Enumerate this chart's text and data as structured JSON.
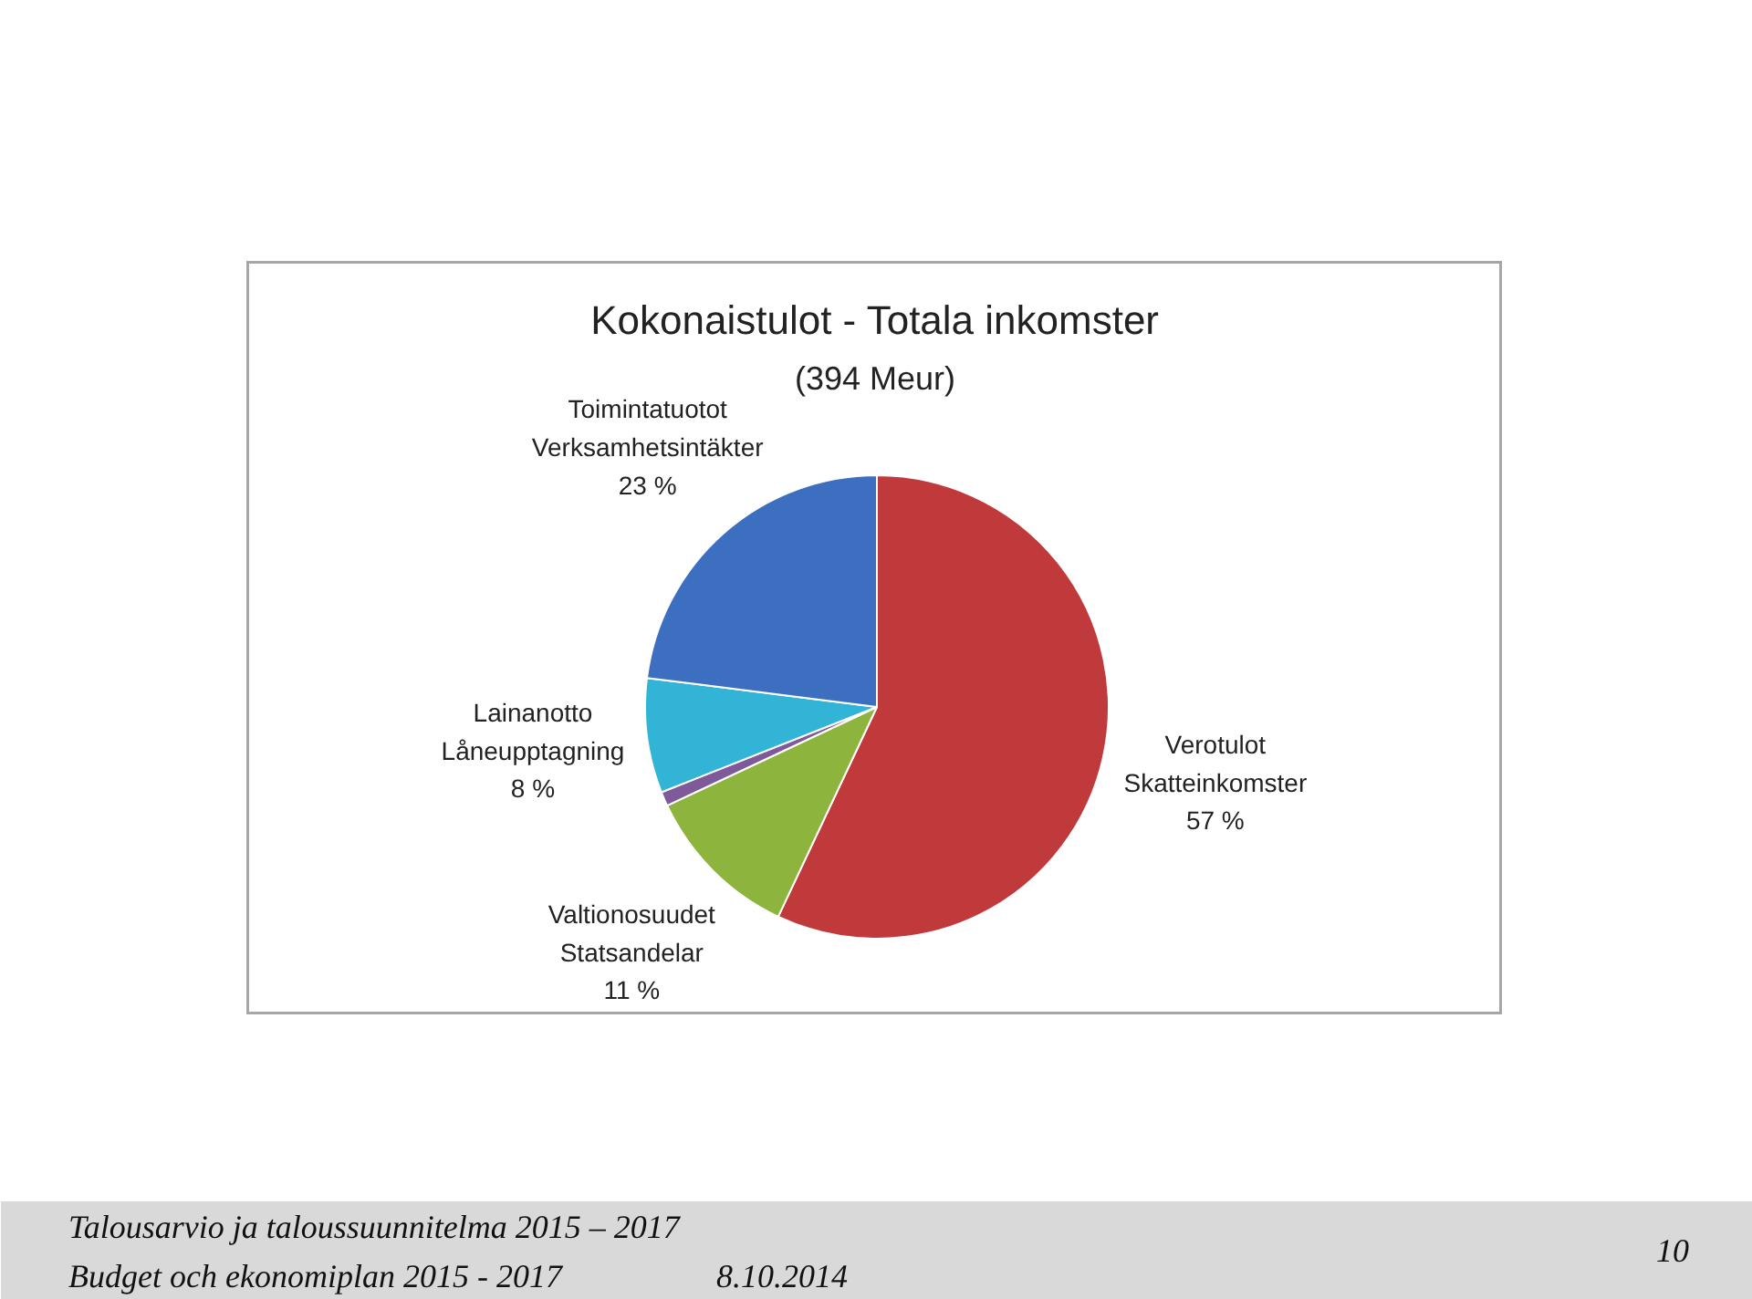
{
  "chart_data": {
    "type": "pie",
    "title": "Kokonaistulot - Totala inkomster",
    "subtitle": "(394 Meur)",
    "categories": [
      "Verotulot\nSkatteinkomster",
      "Valtionosuudet\nStatsandelar",
      null,
      "Lainanotto\nLåneupptagning",
      "Toimintatuotot\nVerksamhetsintäkter"
    ],
    "values": [
      57,
      11,
      1,
      8,
      23
    ],
    "colors": [
      "#c0393b",
      "#8db43c",
      "#7e5a9b",
      "#31b4d6",
      "#3c6fc0"
    ],
    "value_labels": [
      "57 %",
      "11 %",
      null,
      "8 %",
      "23 %"
    ],
    "annotations": [
      "Talousarvio ja taloussuunnitelma 2015 – 2017",
      "Budget och ekonomiplan 2015 - 2017",
      "8.10.2014",
      "10"
    ]
  }
}
